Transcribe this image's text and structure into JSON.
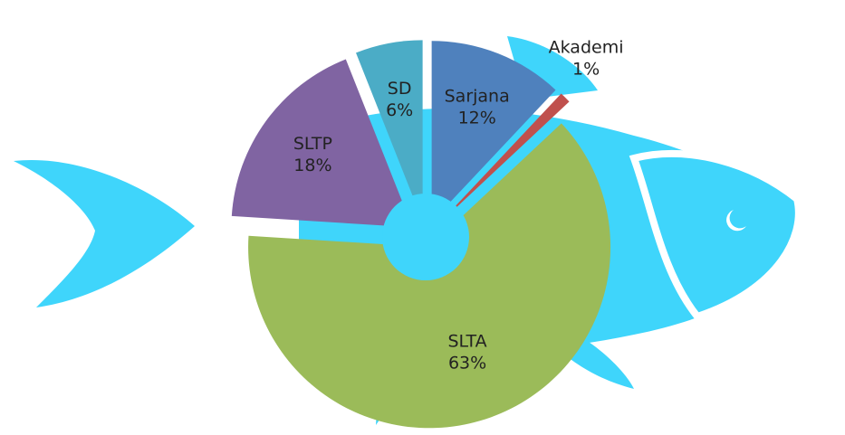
{
  "chart_data": {
    "type": "pie",
    "categories": [
      "Sarjana",
      "Akademi",
      "SLTA",
      "SLTP",
      "SD"
    ],
    "values": [
      12,
      1,
      63,
      18,
      6
    ],
    "value_labels": [
      "12%",
      "1%",
      "63%",
      "18%",
      "6%"
    ],
    "colors": [
      "#4f81bd",
      "#c0504d",
      "#9bbb59",
      "#8064a2",
      "#4bacc6"
    ]
  }
}
